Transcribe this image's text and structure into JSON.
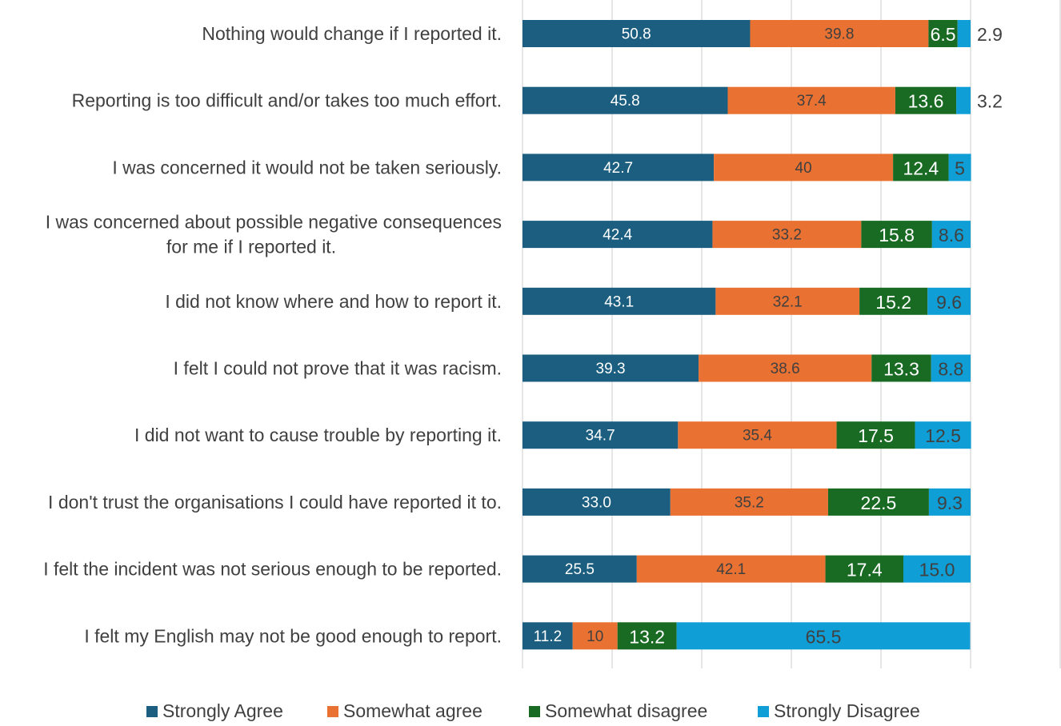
{
  "chart_data": {
    "type": "bar",
    "orientation": "horizontal",
    "stacked": true,
    "categories": [
      "Nothing would change if I reported it.",
      "Reporting is too difficult and/or takes too much effort.",
      "I was concerned it would not be taken seriously.",
      "I was concerned about possible negative consequences for me if I reported it.",
      "I did not know where and how to report it.",
      "I felt I could not prove that it was racism.",
      "I did not want to cause trouble by reporting it.",
      "I don't trust the organisations I could have reported it to.",
      "I felt the incident was not serious enough to be reported.",
      "I felt my English may not be good enough to report."
    ],
    "category_lines": [
      [
        "Nothing would change if I reported it."
      ],
      [
        "Reporting is too difficult and/or takes too much effort."
      ],
      [
        "I was concerned it would not be taken seriously."
      ],
      [
        "I was concerned about possible negative consequences",
        "for me if I reported it."
      ],
      [
        "I did not know where and how to report it."
      ],
      [
        "I felt I could not prove that it was racism."
      ],
      [
        "I did not want to cause trouble by reporting it."
      ],
      [
        "I don't trust the organisations I could have reported it to."
      ],
      [
        "I felt the incident was not serious enough to be reported."
      ],
      [
        "I felt my English may not be good enough to report."
      ]
    ],
    "series": [
      {
        "name": "Strongly Agree",
        "color": "#1b5e80",
        "values": [
          50.8,
          45.8,
          42.7,
          42.4,
          43.1,
          39.3,
          34.7,
          33.0,
          25.5,
          11.2
        ],
        "labels": [
          "50.8",
          "45.8",
          "42.7",
          "42.4",
          "43.1",
          "39.3",
          "34.7",
          "33.0",
          "25.5",
          "11.2"
        ]
      },
      {
        "name": "Somewhat agree",
        "color": "#e97132",
        "values": [
          39.8,
          37.4,
          40,
          33.2,
          32.1,
          38.6,
          35.4,
          35.2,
          42.1,
          10
        ],
        "labels": [
          "39.8",
          "37.4",
          "40",
          "33.2",
          "32.1",
          "38.6",
          "35.4",
          "35.2",
          "42.1",
          "10"
        ]
      },
      {
        "name": "Somewhat disagree",
        "color": "#196b24",
        "values": [
          6.5,
          13.6,
          12.4,
          15.8,
          15.2,
          13.3,
          17.5,
          22.5,
          17.4,
          13.2
        ],
        "labels": [
          "6.5",
          "13.6",
          "12.4",
          "15.8",
          "15.2",
          "13.3",
          "17.5",
          "22.5",
          "17.4",
          "13.2"
        ]
      },
      {
        "name": "Strongly Disagree",
        "color": "#0f9ed5",
        "values": [
          2.9,
          3.2,
          5,
          8.6,
          9.6,
          8.8,
          12.5,
          9.3,
          15.0,
          65.5
        ],
        "labels": [
          "2.9",
          "3.2",
          "5",
          "8.6",
          "9.6",
          "8.8",
          "12.5",
          "9.3",
          "15.0",
          "65.5"
        ]
      }
    ],
    "xlim": [
      0,
      120
    ],
    "grid": true,
    "legend_position": "bottom"
  }
}
